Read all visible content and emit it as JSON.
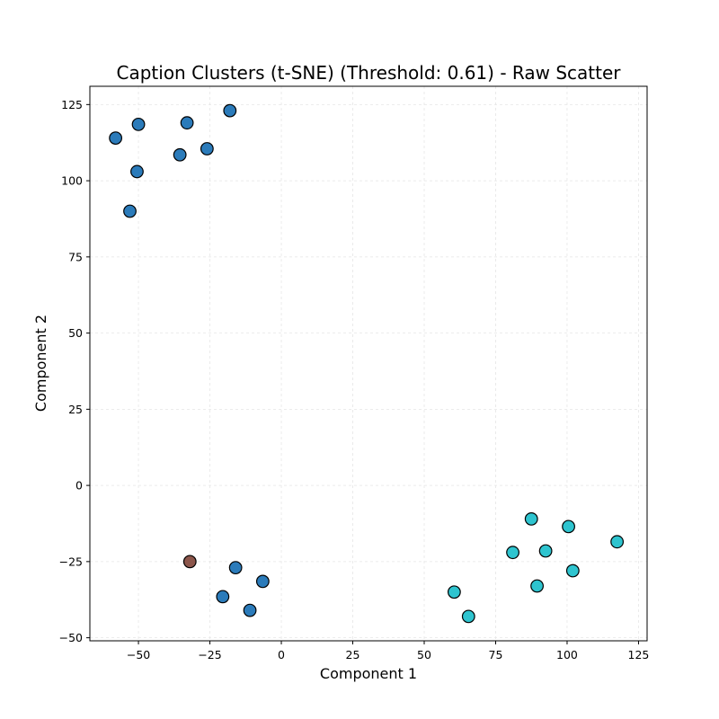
{
  "chart_data": {
    "type": "scatter",
    "title": "Caption Clusters (t-SNE) (Threshold: 0.61) - Raw Scatter",
    "xlabel": "Component 1",
    "ylabel": "Component 2",
    "xlim": [
      -67,
      128
    ],
    "ylim": [
      -51,
      131
    ],
    "xticks": [
      -50,
      -25,
      0,
      25,
      50,
      75,
      100,
      125
    ],
    "yticks": [
      -50,
      -25,
      0,
      25,
      50,
      75,
      100,
      125
    ],
    "grid": true,
    "legend": "none",
    "series": [
      {
        "color": "#2b7bba",
        "points": [
          [
            -58,
            114
          ],
          [
            -50,
            118.5
          ],
          [
            -33,
            119
          ],
          [
            -18,
            123
          ],
          [
            -50.5,
            103
          ],
          [
            -35.5,
            108.5
          ],
          [
            -26,
            110.5
          ],
          [
            -53,
            90
          ],
          [
            -16,
            -27
          ],
          [
            -6.5,
            -31.5
          ],
          [
            -20.5,
            -36.5
          ],
          [
            -11,
            -41
          ]
        ]
      },
      {
        "color": "#8c564b",
        "points": [
          [
            -32,
            -25
          ]
        ]
      },
      {
        "color": "#2ec4cf",
        "points": [
          [
            87.5,
            -11
          ],
          [
            100.5,
            -13.5
          ],
          [
            117.5,
            -18.5
          ],
          [
            81,
            -22
          ],
          [
            92.5,
            -21.5
          ],
          [
            102,
            -28
          ],
          [
            89.5,
            -33
          ],
          [
            60.5,
            -35
          ],
          [
            65.5,
            -43
          ]
        ]
      }
    ]
  }
}
